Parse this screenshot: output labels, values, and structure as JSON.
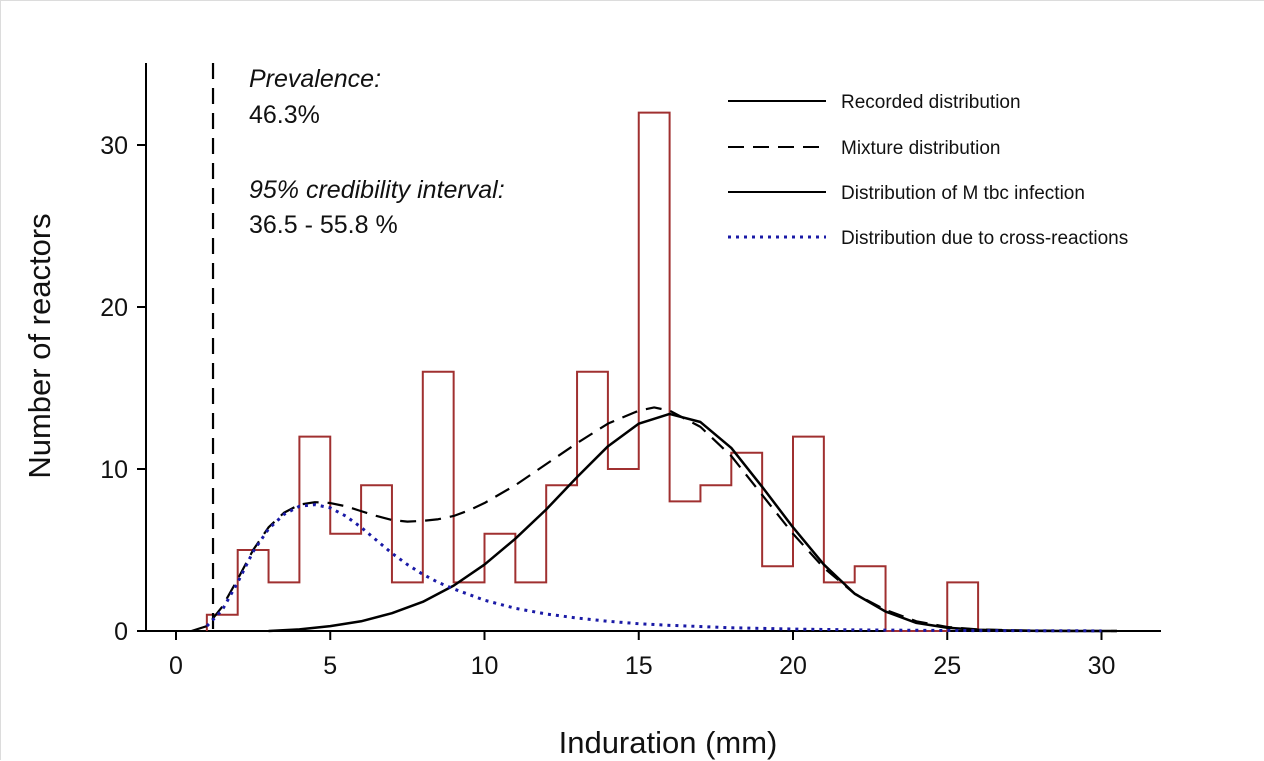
{
  "chart_data": {
    "type": "line",
    "xlabel": "Induration (mm)",
    "ylabel": "Number of reactors",
    "xlim": [
      -1,
      32
    ],
    "ylim": [
      0,
      35
    ],
    "xticks": [
      0,
      5,
      10,
      15,
      20,
      25,
      30
    ],
    "yticks": [
      0,
      10,
      20,
      30
    ],
    "grid": false,
    "legend_position": "top-right",
    "legend": [
      {
        "label": "Recorded distribution",
        "style": "solid",
        "color": "#000000"
      },
      {
        "label": "Mixture distribution",
        "style": "dashed",
        "color": "#000000"
      },
      {
        "label": "Distribution of M tbc infection",
        "style": "solid",
        "color": "#000000"
      },
      {
        "label": "Distribution due to cross-reactions",
        "style": "dotted",
        "color": "#1a1aa6"
      }
    ],
    "annotations": {
      "prevalence_label": "Prevalence:",
      "prevalence_value": "46.3%",
      "ci_label": "95% credibility interval:",
      "ci_value": "36.5 - 55.8 %"
    },
    "cutoff_x": 1.2,
    "histogram": {
      "color": "#a03030",
      "bin_edges": [
        1,
        2,
        3,
        4,
        5,
        6,
        7,
        8,
        9,
        10,
        11,
        12,
        13,
        14,
        15,
        16,
        17,
        18,
        19,
        20,
        21,
        22,
        23,
        24,
        25,
        26
      ],
      "counts": [
        1,
        5,
        3,
        12,
        6,
        9,
        3,
        16,
        3,
        6,
        3,
        9,
        16,
        10,
        32,
        8,
        9,
        11,
        4,
        12,
        3,
        4,
        0,
        0,
        3
      ]
    },
    "series": [
      {
        "name": "Mixture distribution",
        "style": "dashed",
        "color": "#000000",
        "x": [
          0.5,
          1,
          1.5,
          2,
          2.5,
          3,
          3.5,
          4,
          4.5,
          5,
          5.5,
          6,
          6.5,
          7,
          7.5,
          8,
          8.5,
          9,
          9.5,
          10,
          11,
          12,
          13,
          14,
          15,
          15.5,
          16,
          17,
          18,
          19,
          20,
          21,
          22,
          23,
          24,
          25,
          26,
          27,
          28,
          29,
          30,
          30.5
        ],
        "y": [
          0,
          0.3,
          1.5,
          3.2,
          5.0,
          6.4,
          7.3,
          7.8,
          7.95,
          7.9,
          7.7,
          7.4,
          7.1,
          6.85,
          6.75,
          6.8,
          6.9,
          7.1,
          7.45,
          7.9,
          9.0,
          10.3,
          11.6,
          12.8,
          13.6,
          13.8,
          13.6,
          12.6,
          10.8,
          8.4,
          6.0,
          3.9,
          2.3,
          1.3,
          0.6,
          0.25,
          0.1,
          0.05,
          0.02,
          0.01,
          0,
          0
        ]
      },
      {
        "name": "Distribution of M tbc infection",
        "style": "solid",
        "color": "#000000",
        "x": [
          3,
          4,
          5,
          6,
          7,
          8,
          9,
          10,
          11,
          12,
          13,
          14,
          15,
          16,
          17,
          18,
          19,
          20,
          21,
          22,
          23,
          24,
          25,
          26,
          27,
          28,
          29,
          30,
          30.5
        ],
        "y": [
          0,
          0.1,
          0.3,
          0.6,
          1.1,
          1.8,
          2.8,
          4.1,
          5.7,
          7.5,
          9.5,
          11.4,
          12.8,
          13.4,
          12.9,
          11.3,
          8.9,
          6.4,
          4.1,
          2.3,
          1.2,
          0.5,
          0.2,
          0.08,
          0.03,
          0.01,
          0,
          0,
          0
        ]
      },
      {
        "name": "Distribution due to cross-reactions",
        "style": "dotted",
        "color": "#1a1aa6",
        "x": [
          1,
          1.5,
          2,
          2.5,
          3,
          3.5,
          4,
          4.5,
          5,
          5.5,
          6,
          6.5,
          7,
          7.5,
          8,
          8.5,
          9,
          10,
          11,
          12,
          13,
          14,
          15,
          16,
          18,
          20,
          22,
          25,
          30
        ],
        "y": [
          0.3,
          1.3,
          3.0,
          4.9,
          6.3,
          7.2,
          7.7,
          7.8,
          7.6,
          7.1,
          6.4,
          5.6,
          4.8,
          4.1,
          3.5,
          3.0,
          2.6,
          1.9,
          1.4,
          1.05,
          0.8,
          0.6,
          0.45,
          0.35,
          0.2,
          0.12,
          0.07,
          0.03,
          0.01
        ]
      }
    ]
  }
}
